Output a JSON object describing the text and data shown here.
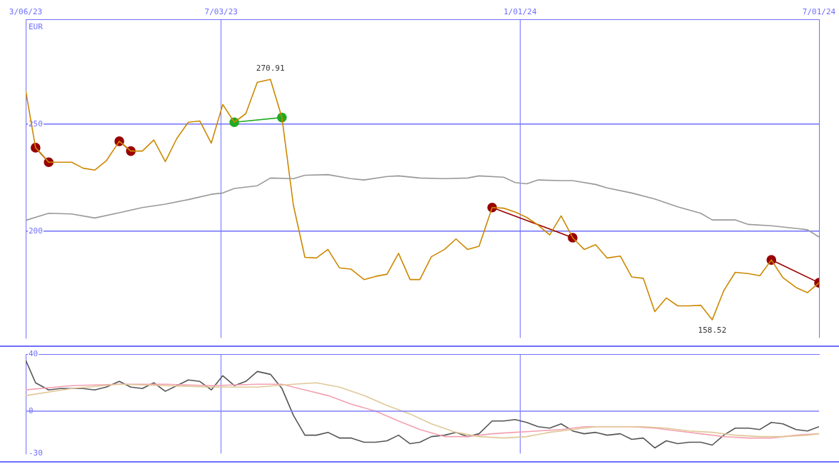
{
  "chart_data": [
    {
      "type": "line",
      "ylabel": "EUR",
      "xlim": [
        "2023-03-06",
        "2024-07-01"
      ],
      "xticks": [
        {
          "value": "2023-03-06",
          "label": "3/06/23"
        },
        {
          "value": "2023-07-03",
          "label": "7/03/23"
        },
        {
          "value": "2024-01-01",
          "label": "1/01/24"
        },
        {
          "value": "2024-07-01",
          "label": "7/01/24"
        }
      ],
      "ylim": [
        150,
        299
      ],
      "yticks": [
        200,
        250
      ],
      "grid": true,
      "annotations": [
        {
          "text": "270.91",
          "x": "2023-08-02",
          "y": 270.91
        },
        {
          "text": "158.52",
          "x": "2024-04-27",
          "y": 158.52
        }
      ],
      "series": [
        {
          "color": "#999999",
          "x": [
            "2023-03-06",
            "2023-03-20",
            "2023-04-03",
            "2023-04-17",
            "2023-05-02",
            "2023-05-16",
            "2023-05-30",
            "2023-06-13",
            "2023-06-27",
            "2023-07-04",
            "2023-07-11",
            "2023-07-25",
            "2023-08-02",
            "2023-08-16",
            "2023-08-23",
            "2023-09-06",
            "2023-09-20",
            "2023-09-28",
            "2023-10-12",
            "2023-10-19",
            "2023-11-01",
            "2023-11-16",
            "2023-11-30",
            "2023-12-07",
            "2023-12-22",
            "2023-12-29",
            "2024-01-05",
            "2024-01-12",
            "2024-01-26",
            "2024-02-02",
            "2024-02-16",
            "2024-02-23",
            "2024-03-09",
            "2024-03-23",
            "2024-04-06",
            "2024-04-20",
            "2024-04-27",
            "2024-05-11",
            "2024-05-19",
            "2024-06-02",
            "2024-06-17",
            "2024-06-24",
            "2024-07-01"
          ],
          "values": [
            205.0,
            208.3,
            208.0,
            206.1,
            208.6,
            211.0,
            212.6,
            214.7,
            217.2,
            217.8,
            219.9,
            221.2,
            224.8,
            224.5,
            226.1,
            226.4,
            224.5,
            223.9,
            225.5,
            225.8,
            224.8,
            224.5,
            224.8,
            225.8,
            225.2,
            222.7,
            222.1,
            223.9,
            223.6,
            223.6,
            221.8,
            220.2,
            217.8,
            215.0,
            211.3,
            208.3,
            205.2,
            205.2,
            203.1,
            202.5,
            201.2,
            200.6,
            197.2
          ]
        },
        {
          "color": "#cc8800",
          "x": [
            "2023-03-06",
            "2023-03-12",
            "2023-03-20",
            "2023-03-27",
            "2023-04-03",
            "2023-04-10",
            "2023-04-17",
            "2023-04-24",
            "2023-05-02",
            "2023-05-09",
            "2023-05-16",
            "2023-05-23",
            "2023-05-30",
            "2023-06-06",
            "2023-06-13",
            "2023-06-20",
            "2023-06-27",
            "2023-07-04",
            "2023-07-11",
            "2023-07-18",
            "2023-07-25",
            "2023-08-02",
            "2023-08-09",
            "2023-08-16",
            "2023-08-23",
            "2023-08-30",
            "2023-09-06",
            "2023-09-13",
            "2023-09-20",
            "2023-09-28",
            "2023-10-05",
            "2023-10-12",
            "2023-10-19",
            "2023-10-26",
            "2023-11-01",
            "2023-11-08",
            "2023-11-16",
            "2023-11-23",
            "2023-11-30",
            "2023-12-07",
            "2023-12-15",
            "2023-12-22",
            "2023-12-29",
            "2024-01-05",
            "2024-01-12",
            "2024-01-19",
            "2024-01-26",
            "2024-02-02",
            "2024-02-09",
            "2024-02-16",
            "2024-02-23",
            "2024-03-02",
            "2024-03-09",
            "2024-03-16",
            "2024-03-23",
            "2024-03-30",
            "2024-04-06",
            "2024-04-13",
            "2024-04-20",
            "2024-04-27",
            "2024-05-04",
            "2024-05-11",
            "2024-05-19",
            "2024-05-26",
            "2024-06-02",
            "2024-06-09",
            "2024-06-17",
            "2024-06-24",
            "2024-07-01"
          ],
          "values": [
            265.6,
            239.0,
            232.2,
            232.2,
            232.2,
            229.4,
            228.5,
            232.8,
            242.0,
            237.4,
            237.4,
            242.6,
            232.5,
            243.3,
            250.9,
            251.5,
            241.1,
            259.2,
            250.9,
            254.9,
            269.6,
            270.91,
            253.1,
            212.0,
            187.7,
            187.4,
            191.4,
            182.8,
            182.2,
            177.3,
            178.8,
            179.8,
            189.6,
            177.3,
            177.3,
            188.0,
            191.4,
            196.3,
            191.4,
            192.9,
            211.0,
            210.7,
            208.9,
            206.4,
            202.8,
            198.2,
            207.1,
            196.9,
            191.4,
            193.6,
            187.4,
            188.3,
            178.5,
            177.9,
            162.3,
            168.7,
            165.0,
            165.0,
            165.3,
            158.52,
            172.1,
            180.7,
            180.1,
            179.1,
            186.5,
            178.2,
            173.6,
            171.2,
            175.8
          ]
        },
        {
          "color": "#990000",
          "marker": "circle",
          "x": [
            "2023-03-12",
            "2023-03-20"
          ],
          "values": [
            239.0,
            232.2
          ]
        },
        {
          "color": "#990000",
          "marker": "circle",
          "x": [
            "2023-05-02",
            "2023-05-09"
          ],
          "values": [
            242.0,
            237.4
          ]
        },
        {
          "color": "#22aa22",
          "marker": "circle",
          "x": [
            "2023-07-11",
            "2023-08-09"
          ],
          "values": [
            250.9,
            253.1
          ]
        },
        {
          "color": "#990000",
          "marker": "circle",
          "x": [
            "2023-12-15",
            "2024-02-02"
          ],
          "values": [
            211.0,
            196.9
          ]
        },
        {
          "color": "#990000",
          "marker": "circle",
          "x": [
            "2024-06-02",
            "2024-07-01"
          ],
          "values": [
            186.5,
            175.8
          ]
        }
      ]
    },
    {
      "type": "line",
      "xlim": [
        "2023-03-06",
        "2024-07-01"
      ],
      "xticks": [
        {
          "value": "2023-07-03",
          "label": null
        },
        {
          "value": "2024-01-01",
          "label": null
        }
      ],
      "ylim": [
        -30,
        40
      ],
      "yticks": [
        -30,
        0,
        40
      ],
      "grid": "x",
      "tick_labels": "y",
      "ref_lines": [
        {
          "axis": "y",
          "value": 0,
          "color": "#8080ff"
        }
      ],
      "series": [
        {
          "color": "#e0c898",
          "x": [
            "2023-03-06",
            "2023-04-03",
            "2023-05-02",
            "2023-05-30",
            "2023-06-27",
            "2023-07-25",
            "2023-08-16",
            "2023-08-30",
            "2023-09-13",
            "2023-09-28",
            "2023-10-12",
            "2023-10-26",
            "2023-11-08",
            "2023-11-23",
            "2023-12-07",
            "2023-12-22",
            "2024-01-05",
            "2024-01-19",
            "2024-02-02",
            "2024-02-16",
            "2024-03-02",
            "2024-03-16",
            "2024-03-30",
            "2024-04-13",
            "2024-04-27",
            "2024-05-11",
            "2024-05-26",
            "2024-06-09",
            "2024-06-24",
            "2024-07-01"
          ],
          "values": [
            11,
            16,
            19,
            18,
            17,
            17,
            19,
            20,
            17,
            11,
            4,
            -2,
            -9,
            -15,
            -18,
            -19,
            -18,
            -15,
            -13,
            -11,
            -11,
            -11,
            -12,
            -14,
            -15,
            -17,
            -18,
            -18,
            -17,
            -16
          ]
        },
        {
          "color": "#f4a0b0",
          "x": [
            "2023-03-06",
            "2023-04-03",
            "2023-05-02",
            "2023-05-30",
            "2023-06-27",
            "2023-07-25",
            "2023-08-09",
            "2023-08-23",
            "2023-09-06",
            "2023-09-20",
            "2023-10-05",
            "2023-10-19",
            "2023-11-01",
            "2023-11-16",
            "2023-11-30",
            "2023-12-15",
            "2023-12-29",
            "2024-01-12",
            "2024-01-26",
            "2024-02-09",
            "2024-02-23",
            "2024-03-09",
            "2024-03-23",
            "2024-04-06",
            "2024-04-20",
            "2024-05-04",
            "2024-05-19",
            "2024-06-02",
            "2024-06-17",
            "2024-07-01"
          ],
          "values": [
            15,
            18,
            19,
            19,
            18,
            19,
            19,
            15,
            11,
            5,
            0,
            -7,
            -13,
            -18,
            -18,
            -16,
            -15,
            -14,
            -13,
            -11,
            -11,
            -11,
            -12,
            -14,
            -16,
            -18,
            -19,
            -19,
            -17,
            -16
          ]
        },
        {
          "color": "#555555",
          "x": [
            "2023-03-06",
            "2023-03-12",
            "2023-03-20",
            "2023-03-27",
            "2023-04-03",
            "2023-04-10",
            "2023-04-17",
            "2023-04-24",
            "2023-05-02",
            "2023-05-09",
            "2023-05-16",
            "2023-05-23",
            "2023-05-30",
            "2023-06-06",
            "2023-06-13",
            "2023-06-20",
            "2023-06-27",
            "2023-07-04",
            "2023-07-11",
            "2023-07-18",
            "2023-07-25",
            "2023-08-02",
            "2023-08-09",
            "2023-08-16",
            "2023-08-23",
            "2023-08-30",
            "2023-09-06",
            "2023-09-13",
            "2023-09-20",
            "2023-09-28",
            "2023-10-05",
            "2023-10-12",
            "2023-10-19",
            "2023-10-26",
            "2023-11-01",
            "2023-11-08",
            "2023-11-16",
            "2023-11-23",
            "2023-11-30",
            "2023-12-07",
            "2023-12-15",
            "2023-12-22",
            "2023-12-29",
            "2024-01-05",
            "2024-01-12",
            "2024-01-19",
            "2024-01-26",
            "2024-02-02",
            "2024-02-09",
            "2024-02-16",
            "2024-02-23",
            "2024-03-02",
            "2024-03-09",
            "2024-03-16",
            "2024-03-23",
            "2024-03-30",
            "2024-04-06",
            "2024-04-13",
            "2024-04-20",
            "2024-04-27",
            "2024-05-04",
            "2024-05-11",
            "2024-05-19",
            "2024-05-26",
            "2024-06-02",
            "2024-06-09",
            "2024-06-17",
            "2024-06-24",
            "2024-07-01"
          ],
          "values": [
            36,
            20,
            15,
            16,
            16,
            16,
            15,
            17,
            21,
            17,
            16,
            20,
            14,
            18,
            22,
            21,
            15,
            25,
            18,
            21,
            28,
            26,
            16,
            -3,
            -17,
            -17,
            -15,
            -19,
            -19,
            -22,
            -22,
            -21,
            -17,
            -23,
            -22,
            -18,
            -17,
            -15,
            -18,
            -16,
            -7,
            -7,
            -6,
            -8,
            -11,
            -12,
            -9,
            -14,
            -16,
            -15,
            -17,
            -16,
            -20,
            -19,
            -26,
            -21,
            -23,
            -22,
            -22,
            -24,
            -17,
            -12,
            -12,
            -13,
            -8,
            -9,
            -13,
            -14,
            -11
          ]
        }
      ]
    }
  ]
}
